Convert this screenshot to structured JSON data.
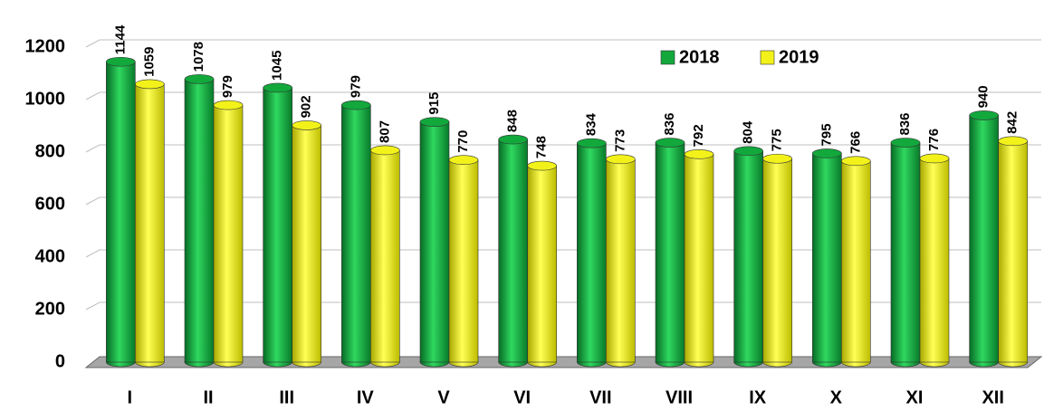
{
  "chart_data": {
    "type": "bar3d",
    "categories": [
      "I",
      "II",
      "III",
      "IV",
      "V",
      "VI",
      "VII",
      "VIII",
      "IX",
      "X",
      "XI",
      "XII"
    ],
    "series": [
      {
        "name": "2018",
        "color": "#12a83c",
        "values": [
          1144,
          1078,
          1045,
          979,
          915,
          848,
          834,
          836,
          804,
          795,
          836,
          940
        ]
      },
      {
        "name": "2019",
        "color": "#f2f21a",
        "values": [
          1059,
          979,
          902,
          807,
          770,
          748,
          773,
          792,
          775,
          766,
          776,
          842
        ]
      }
    ],
    "ylim": [
      0,
      1200
    ],
    "yticks": [
      0,
      200,
      400,
      600,
      800,
      1000,
      1200
    ],
    "grid": true
  }
}
